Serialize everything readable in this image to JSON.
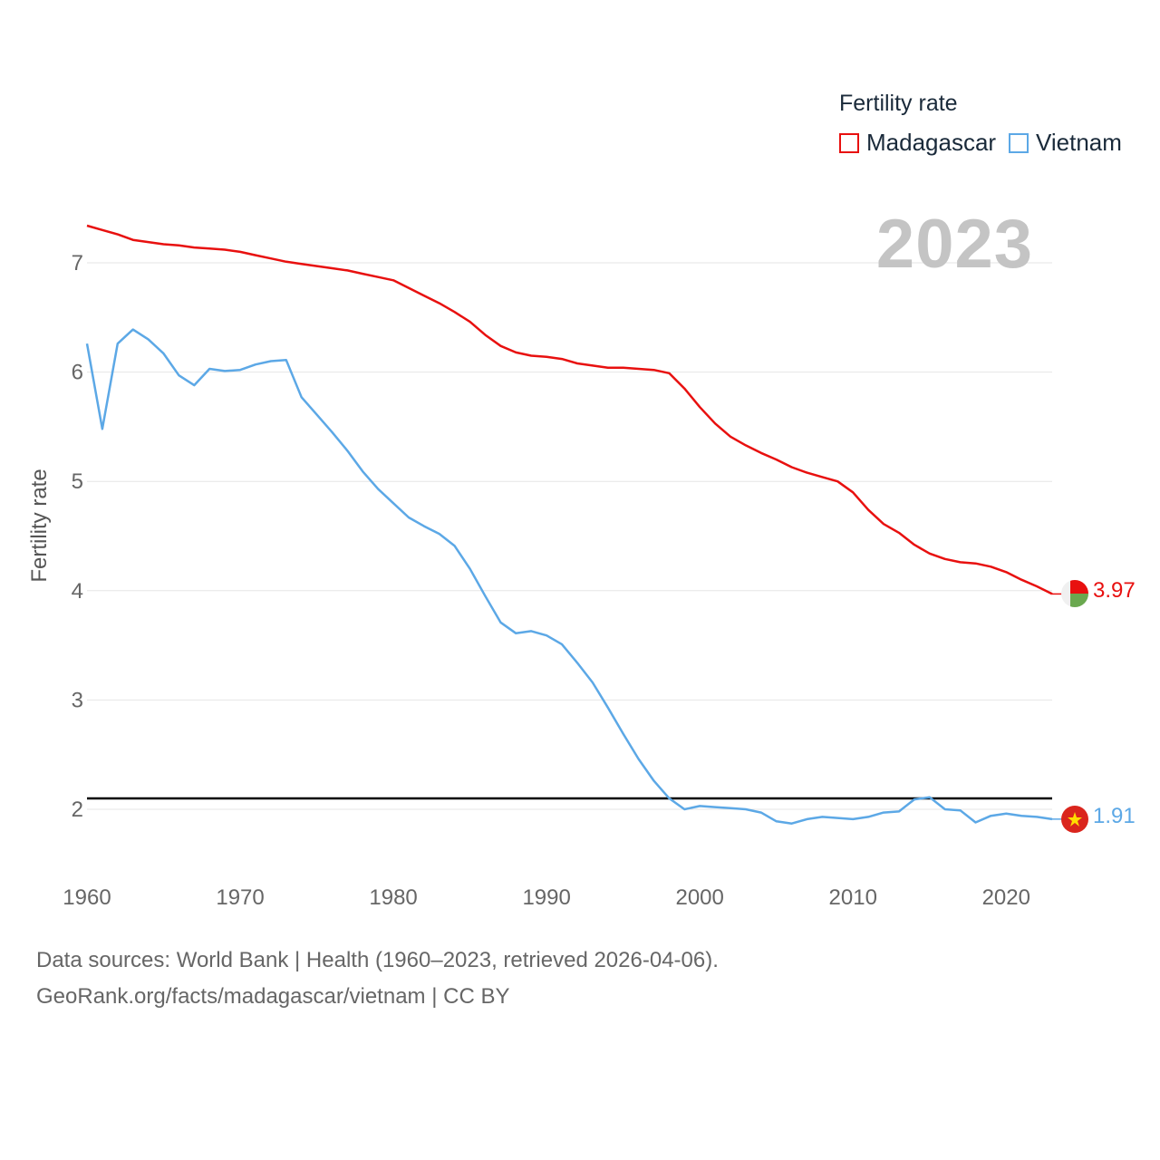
{
  "legend": {
    "title": "Fertility rate",
    "items": [
      {
        "name": "Madagascar",
        "color": "#e8100f"
      },
      {
        "name": "Vietnam",
        "color": "#5ca8e6"
      }
    ]
  },
  "year_label": "2023",
  "footer": {
    "line1": "Data sources: World Bank | Health (1960–2023, retrieved 2026-04-06).",
    "line2": "GeoRank.org/facts/madagascar/vietnam | CC BY"
  },
  "end_labels": {
    "madagascar": "3.97",
    "vietnam": "1.91"
  },
  "chart_data": {
    "type": "line",
    "title": "",
    "xlabel": "",
    "ylabel": "Fertility rate",
    "xlim": [
      1960,
      2023
    ],
    "ylim": [
      1.4,
      7.6
    ],
    "x_ticks": [
      "1960",
      "1970",
      "1980",
      "1990",
      "2000",
      "2010",
      "2020"
    ],
    "y_ticks": [
      "2",
      "3",
      "4",
      "5",
      "6",
      "7"
    ],
    "reference_line": {
      "y": 2.1,
      "color": "#000000"
    },
    "x": [
      1960,
      1961,
      1962,
      1963,
      1964,
      1965,
      1966,
      1967,
      1968,
      1969,
      1970,
      1971,
      1972,
      1973,
      1974,
      1975,
      1976,
      1977,
      1978,
      1979,
      1980,
      1981,
      1982,
      1983,
      1984,
      1985,
      1986,
      1987,
      1988,
      1989,
      1990,
      1991,
      1992,
      1993,
      1994,
      1995,
      1996,
      1997,
      1998,
      1999,
      2000,
      2001,
      2002,
      2003,
      2004,
      2005,
      2006,
      2007,
      2008,
      2009,
      2010,
      2011,
      2012,
      2013,
      2014,
      2015,
      2016,
      2017,
      2018,
      2019,
      2020,
      2021,
      2022,
      2023
    ],
    "series": [
      {
        "name": "Madagascar",
        "color": "#e8100f",
        "values": [
          7.34,
          7.3,
          7.26,
          7.21,
          7.19,
          7.17,
          7.16,
          7.14,
          7.13,
          7.12,
          7.1,
          7.07,
          7.04,
          7.01,
          6.99,
          6.97,
          6.95,
          6.93,
          6.9,
          6.87,
          6.84,
          6.77,
          6.7,
          6.63,
          6.55,
          6.46,
          6.34,
          6.24,
          6.18,
          6.15,
          6.14,
          6.12,
          6.08,
          6.06,
          6.04,
          6.04,
          6.03,
          6.02,
          5.99,
          5.85,
          5.68,
          5.53,
          5.41,
          5.33,
          5.26,
          5.2,
          5.13,
          5.08,
          5.04,
          5.0,
          4.9,
          4.74,
          4.61,
          4.53,
          4.42,
          4.34,
          4.29,
          4.26,
          4.25,
          4.22,
          4.17,
          4.1,
          4.04,
          3.97
        ]
      },
      {
        "name": "Vietnam",
        "color": "#5ca8e6",
        "values": [
          6.26,
          5.48,
          6.26,
          6.39,
          6.3,
          6.17,
          5.97,
          5.88,
          6.03,
          6.01,
          6.02,
          6.07,
          6.1,
          6.11,
          5.77,
          5.61,
          5.45,
          5.28,
          5.09,
          4.93,
          4.8,
          4.67,
          4.59,
          4.52,
          4.41,
          4.2,
          3.95,
          3.71,
          3.61,
          3.63,
          3.59,
          3.51,
          3.34,
          3.16,
          2.93,
          2.69,
          2.46,
          2.26,
          2.1,
          2.0,
          2.03,
          2.02,
          2.01,
          2.0,
          1.97,
          1.89,
          1.87,
          1.91,
          1.93,
          1.92,
          1.91,
          1.93,
          1.97,
          1.98,
          2.09,
          2.11,
          2.0,
          1.99,
          1.88,
          1.94,
          1.96,
          1.94,
          1.93,
          1.91
        ]
      }
    ]
  }
}
